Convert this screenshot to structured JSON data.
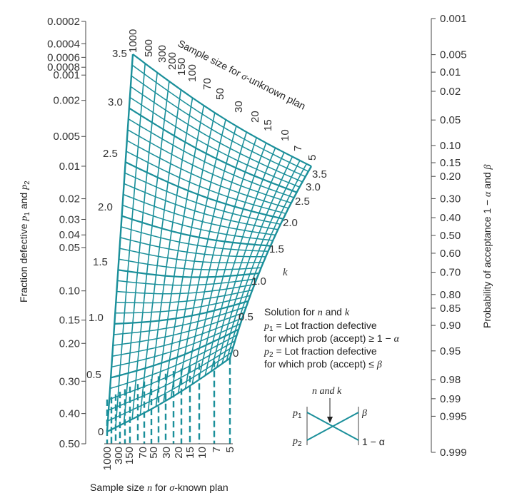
{
  "left_axis": {
    "title_prefix": "Fraction defective ",
    "title_p1": "p",
    "title_sub1": "1",
    "title_and": " and ",
    "title_p2": "p",
    "title_sub2": "2",
    "ticks": [
      {
        "label": "0.0002",
        "v": 0.0002
      },
      {
        "label": "0.0004",
        "v": 0.0004
      },
      {
        "label": "0.0006",
        "v": 0.0006
      },
      {
        "label": "0.0008",
        "v": 0.0008
      },
      {
        "label": "0.001",
        "v": 0.001
      },
      {
        "label": "0.002",
        "v": 0.002
      },
      {
        "label": "0.005",
        "v": 0.005
      },
      {
        "label": "0.01",
        "v": 0.01
      },
      {
        "label": "0.02",
        "v": 0.02
      },
      {
        "label": "0.03",
        "v": 0.03
      },
      {
        "label": "0.04",
        "v": 0.04
      },
      {
        "label": "0.05",
        "v": 0.05
      },
      {
        "label": "0.10",
        "v": 0.1
      },
      {
        "label": "0.15",
        "v": 0.15
      },
      {
        "label": "0.20",
        "v": 0.2
      },
      {
        "label": "0.30",
        "v": 0.3
      },
      {
        "label": "0.40",
        "v": 0.4
      },
      {
        "label": "0.50",
        "v": 0.5
      }
    ]
  },
  "right_axis": {
    "title_prefix": "Probability of acceptance 1 − ",
    "title_alpha": "α",
    "title_and": " and ",
    "title_beta": "β",
    "ticks": [
      {
        "label": "0.001",
        "v": 0.001
      },
      {
        "label": "0.005",
        "v": 0.005
      },
      {
        "label": "0.01",
        "v": 0.01
      },
      {
        "label": "0.02",
        "v": 0.02
      },
      {
        "label": "0.05",
        "v": 0.05
      },
      {
        "label": "0.10",
        "v": 0.1
      },
      {
        "label": "0.15",
        "v": 0.15
      },
      {
        "label": "0.20",
        "v": 0.2
      },
      {
        "label": "0.30",
        "v": 0.3
      },
      {
        "label": "0.40",
        "v": 0.4
      },
      {
        "label": "0.50",
        "v": 0.5
      },
      {
        "label": "0.60",
        "v": 0.6
      },
      {
        "label": "0.70",
        "v": 0.7
      },
      {
        "label": "0.80",
        "v": 0.8
      },
      {
        "label": "0.85",
        "v": 0.85
      },
      {
        "label": "0.90",
        "v": 0.9
      },
      {
        "label": "0.95",
        "v": 0.95
      },
      {
        "label": "0.98",
        "v": 0.98
      },
      {
        "label": "0.99",
        "v": 0.99
      },
      {
        "label": "0.995",
        "v": 0.995
      },
      {
        "label": "0.999",
        "v": 0.999
      }
    ]
  },
  "bottom_axis": {
    "title_prefix": "Sample size ",
    "title_n": "n",
    "title_mid": " for ",
    "title_sigma": "σ",
    "title_suffix": "-known plan",
    "labels": [
      "1000",
      "300",
      "150",
      "70",
      "50",
      "30",
      "20",
      "15",
      "10",
      "7",
      "5"
    ]
  },
  "top_axis": {
    "title_prefix": "Sample size for ",
    "title_sigma": "σ",
    "title_suffix": "-unknown plan",
    "labels": [
      "1000",
      "500",
      "300",
      "200",
      "150",
      "100",
      "70",
      "50",
      "30",
      "20",
      "15",
      "10",
      "7",
      "5"
    ]
  },
  "k_scale": {
    "symbol": "k",
    "left_labels": [
      "3.5",
      "3.0",
      "2.5",
      "2.0",
      "1.5",
      "1.0",
      "0.5",
      "0"
    ],
    "right_labels": [
      "3.5",
      "3.0",
      "2.5",
      "2.0",
      "1.5",
      "1.0",
      "0.5",
      "0"
    ]
  },
  "solution_note": {
    "line1_prefix": "Solution for ",
    "line1_n": "n",
    "line1_and": " and ",
    "line1_k": "k",
    "line2_p": "p",
    "line2_sub": "1",
    "line2_text": " = Lot fraction defective",
    "line3_text": "for which prob (accept) ≥ 1 − ",
    "line3_alpha": "α",
    "line4_p": "p",
    "line4_sub": "2",
    "line4_text": " = Lot fraction defective",
    "line5_text": "for which prob (accept) ≤ ",
    "line5_beta": "β"
  },
  "key_diagram": {
    "title": "n and k",
    "p1": "p",
    "p1_sub": "1",
    "p2": "p",
    "p2_sub": "2",
    "beta": "β",
    "one_minus_alpha": "1 − α"
  },
  "colors": {
    "grid": "#1a8f9a",
    "axis": "#444444",
    "text": "#333333"
  }
}
